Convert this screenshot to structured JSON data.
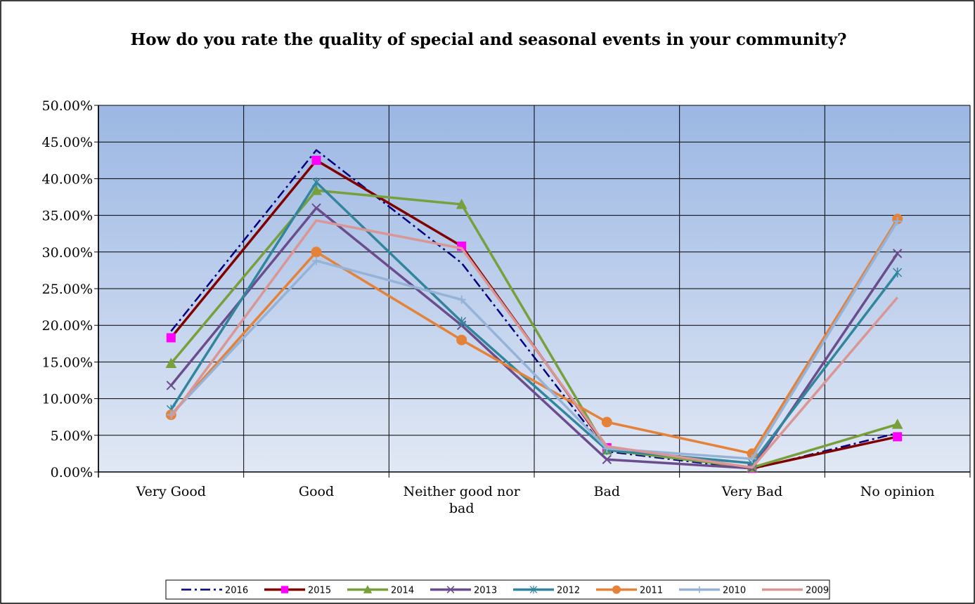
{
  "chart_data": {
    "type": "line",
    "title": "How do you rate the quality of special and seasonal events in your community?",
    "categories": [
      "Very Good",
      "Good",
      "Neither good nor bad",
      "Bad",
      "Very Bad",
      "No opinion"
    ],
    "ylim": [
      0,
      50
    ],
    "yticks": [
      {
        "value": 0,
        "label": "0.00%"
      },
      {
        "value": 5,
        "label": "5.00%"
      },
      {
        "value": 10,
        "label": "10.00%"
      },
      {
        "value": 15,
        "label": "15.00%"
      },
      {
        "value": 20,
        "label": "20.00%"
      },
      {
        "value": 25,
        "label": "25.00%"
      },
      {
        "value": 30,
        "label": "30.00%"
      },
      {
        "value": 35,
        "label": "35.00%"
      },
      {
        "value": 40,
        "label": "40.00%"
      },
      {
        "value": 45,
        "label": "45.00%"
      },
      {
        "value": 50,
        "label": "50.00%"
      }
    ],
    "grid": true,
    "legend": "bottom",
    "series": [
      {
        "name": "2016",
        "color": "#000080",
        "dash": "dash-dot",
        "marker": "none",
        "values": [
          19.2,
          43.9,
          28.5,
          2.8,
          0.4,
          5.3
        ]
      },
      {
        "name": "2015",
        "color": "#800000",
        "marker": "square",
        "marker_color": "#ff00ff",
        "values": [
          18.3,
          42.5,
          30.8,
          3.3,
          0.5,
          4.8
        ]
      },
      {
        "name": "2014",
        "color": "#77a03c",
        "marker": "triangle",
        "values": [
          14.8,
          38.4,
          36.5,
          3.0,
          0.6,
          6.5
        ]
      },
      {
        "name": "2013",
        "color": "#6b4c8c",
        "marker": "x",
        "values": [
          11.8,
          36.0,
          20.0,
          1.7,
          0.5,
          29.8
        ]
      },
      {
        "name": "2012",
        "color": "#31859c",
        "marker": "star",
        "values": [
          8.5,
          39.5,
          20.5,
          3.0,
          1.2,
          27.2
        ]
      },
      {
        "name": "2011",
        "color": "#e4823a",
        "marker": "circle",
        "values": [
          7.8,
          30.0,
          18.0,
          6.8,
          2.5,
          34.5
        ]
      },
      {
        "name": "2010",
        "color": "#95b3d7",
        "marker": "plus",
        "values": [
          7.8,
          28.8,
          23.5,
          3.2,
          1.8,
          34.2
        ]
      },
      {
        "name": "2009",
        "color": "#d99694",
        "marker": "none",
        "values": [
          7.5,
          34.3,
          30.5,
          3.5,
          0.6,
          23.8
        ]
      }
    ]
  }
}
